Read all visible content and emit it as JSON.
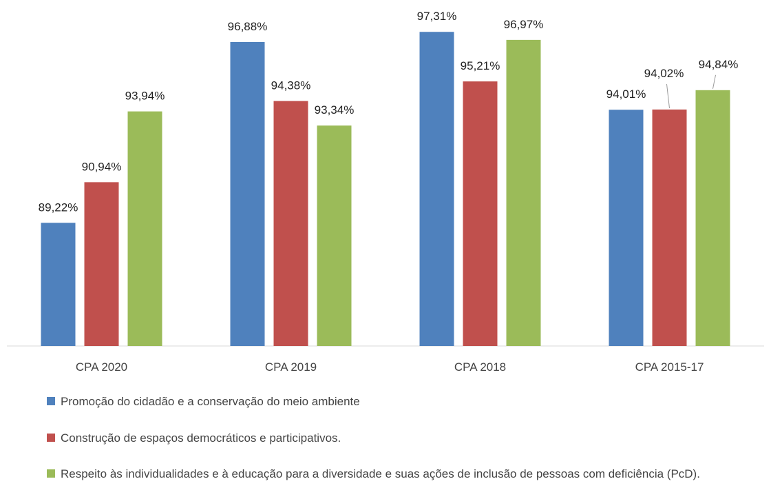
{
  "chart_data": {
    "type": "bar",
    "categories": [
      "CPA 2020",
      "CPA 2019",
      "CPA 2018",
      "CPA 2015-17"
    ],
    "series": [
      {
        "name": "Promoção do cidadão e a conservação do meio ambiente",
        "color": "#4f81bd",
        "values": [
          89.22,
          96.88,
          97.31,
          94.01
        ],
        "value_labels": [
          "89,22%",
          "96,88%",
          "97,31%",
          "94,01%"
        ]
      },
      {
        "name": "Construção de espaços democráticos e participativos.",
        "color": "#c0504d",
        "values": [
          90.94,
          94.38,
          95.21,
          94.02
        ],
        "value_labels": [
          "90,94%",
          "94,38%",
          "95,21%",
          "94,02%"
        ]
      },
      {
        "name": "Respeito às individualidades e à  educação para a diversidade e suas ações de inclusão de pessoas com deficiência (PcD).",
        "color": "#9bbb59",
        "values": [
          93.94,
          93.34,
          96.97,
          94.84
        ],
        "value_labels": [
          "93,94%",
          "93,34%",
          "96,97%",
          "94,84%"
        ]
      }
    ],
    "ylim": [
      84,
      98
    ],
    "legend": "bottom"
  }
}
